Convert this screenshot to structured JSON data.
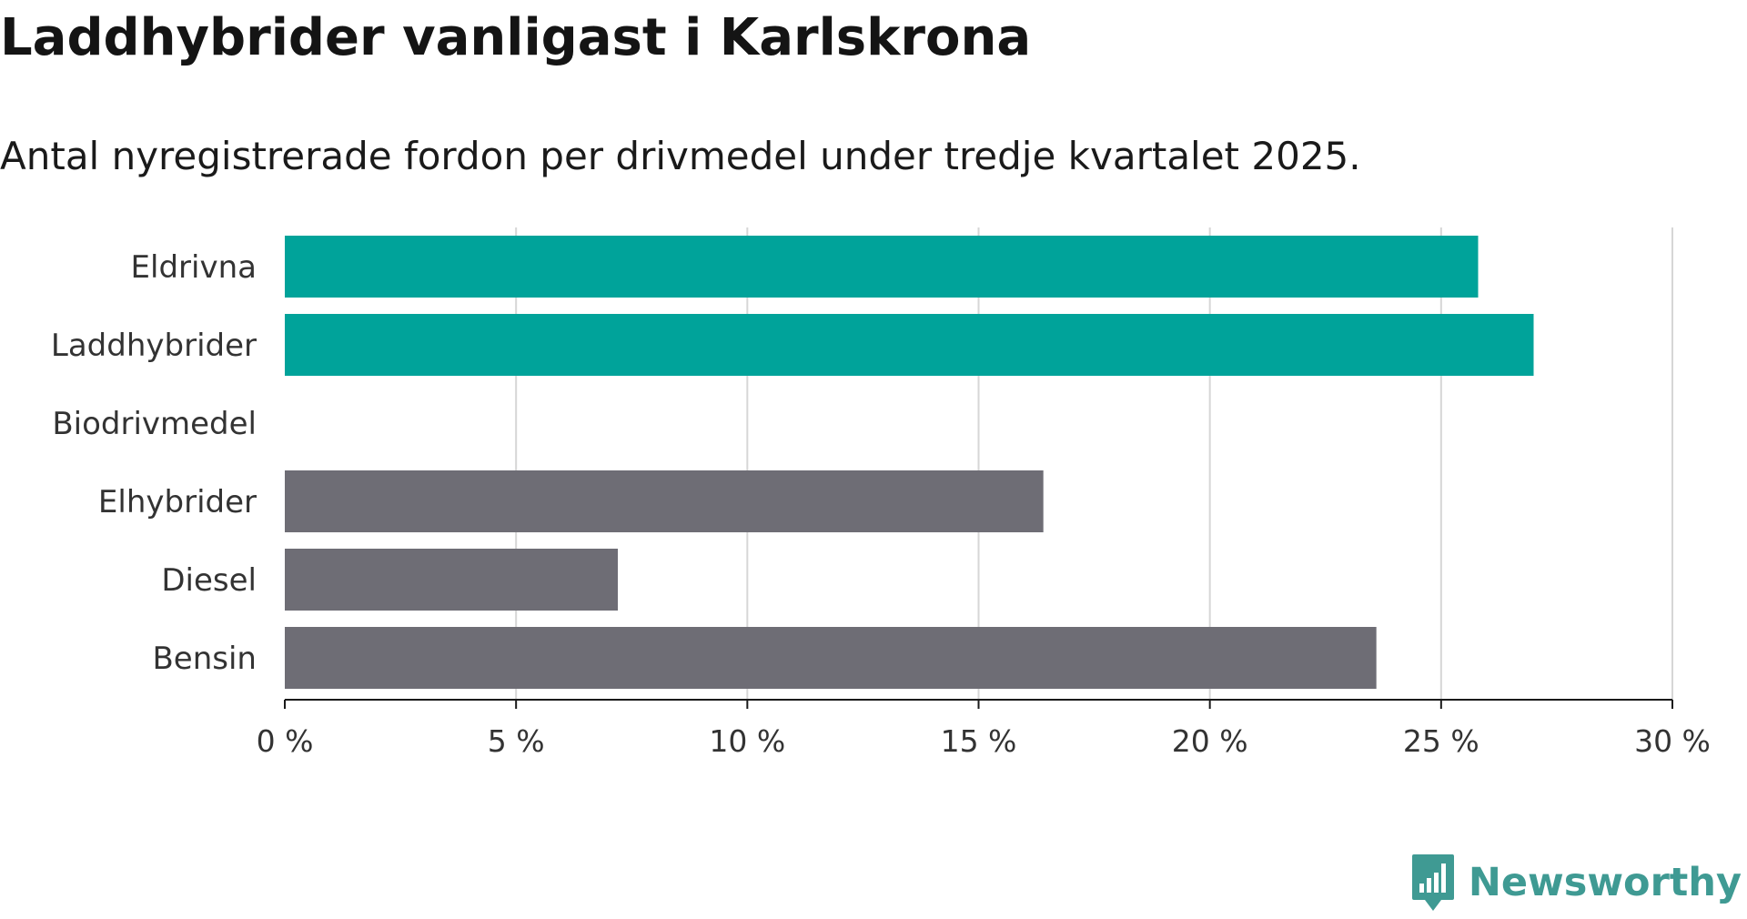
{
  "title": "Laddhybrider vanligast i Karlskrona",
  "subtitle": "Antal nyregistrerade fordon per drivmedel under tredje kvartalet 2025.",
  "brand": "Newsworthy",
  "colors": {
    "highlight": "#00a39a",
    "default": "#6e6d75",
    "grid": "#d6d6d6",
    "axis": "#1a1a1a",
    "brand": "#3f9a93"
  },
  "chart_data": {
    "type": "bar",
    "orientation": "horizontal",
    "title": "Laddhybrider vanligast i Karlskrona",
    "subtitle": "Antal nyregistrerade fordon per drivmedel under tredje kvartalet 2025.",
    "categories": [
      "Eldrivna",
      "Laddhybrider",
      "Biodrivmedel",
      "Elhybrider",
      "Diesel",
      "Bensin"
    ],
    "values": [
      25.8,
      27.0,
      0,
      16.4,
      7.2,
      23.6
    ],
    "highlighted": [
      true,
      true,
      false,
      false,
      false,
      false
    ],
    "xlim": [
      0,
      30
    ],
    "xticks": [
      0,
      5,
      10,
      15,
      20,
      25,
      30
    ],
    "xtick_labels": [
      "0 %",
      "5 %",
      "10 %",
      "15 %",
      "20 %",
      "25 %",
      "30 %"
    ],
    "xlabel": "",
    "ylabel": "",
    "grid": true,
    "legend": "none"
  }
}
